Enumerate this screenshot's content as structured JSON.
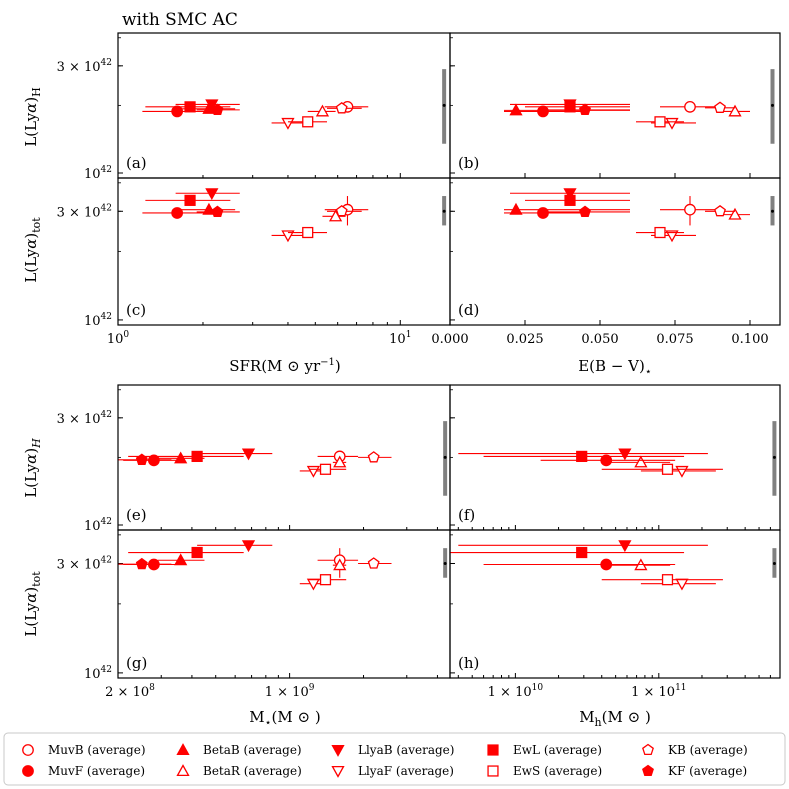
{
  "figure": {
    "title": "with SMC AC",
    "color": "#ff0000",
    "errbar_color": "#808080",
    "ylabels": {
      "top_H": "L(Lyα)_H",
      "top_tot": "L(Lyα)_tot",
      "bottom_H": "L(Lyα)_H",
      "bottom_tot": "L(Lyα)_tot"
    },
    "ytick_labels": {
      "upper": "3 × 10^42",
      "lower": "10^42"
    },
    "xlabels": {
      "sfr": "SFR(M⊙ yr^−1)",
      "ebv": "E(B − V)⋆",
      "mstar": "M⋆(M⊙)",
      "mh": "Mh(M⊙)"
    },
    "xtick_labels": {
      "sfr": [
        "10^0",
        "10^1"
      ],
      "ebv": [
        "0.000",
        "0.025",
        "0.050",
        "0.075",
        "0.100"
      ],
      "mstar": [
        "2 × 10^8",
        "10^9"
      ],
      "mh": [
        "10^10",
        "10^11"
      ]
    },
    "panel_letters": [
      "(a)",
      "(b)",
      "(c)",
      "(d)",
      "(e)",
      "(f)",
      "(g)",
      "(h)"
    ]
  },
  "legend": [
    {
      "label": "MuvB (average)",
      "marker": "circle",
      "filled": false
    },
    {
      "label": "MuvF (average)",
      "marker": "circle",
      "filled": true
    },
    {
      "label": "BetaB (average)",
      "marker": "triangle-up",
      "filled": true
    },
    {
      "label": "BetaR (average)",
      "marker": "triangle-up",
      "filled": false
    },
    {
      "label": "LlyaB (average)",
      "marker": "triangle-down",
      "filled": true
    },
    {
      "label": "LlyaF (average)",
      "marker": "triangle-down",
      "filled": false
    },
    {
      "label": "EwL (average)",
      "marker": "square",
      "filled": true
    },
    {
      "label": "EwS (average)",
      "marker": "square",
      "filled": false
    },
    {
      "label": "KB (average)",
      "marker": "pentagon",
      "filled": false
    },
    {
      "label": "KF (average)",
      "marker": "pentagon",
      "filled": true
    }
  ],
  "chart_data": [
    {
      "panel": "(a)",
      "type": "scatter",
      "xscale": "log",
      "yscale": "log",
      "xlim": [
        1.0,
        15.0
      ],
      "ylim": [
        9.5e+41,
        4.2e+42
      ],
      "ylabel": "L(Lyα)_H",
      "errbar": {
        "x": 14.3,
        "y": 2e+42,
        "ylow": 1.35e+42,
        "yhigh": 2.9e+42
      },
      "points": [
        {
          "group": "MuvB",
          "x": 6.5,
          "y": 1.97e+42,
          "xerr": [
            5.4,
            7.7
          ]
        },
        {
          "group": "MuvF",
          "x": 1.62,
          "y": 1.88e+42,
          "xerr": [
            1.22,
            2.15
          ]
        },
        {
          "group": "BetaB",
          "x": 2.1,
          "y": 1.93e+42,
          "xerr": [
            1.65,
            2.6
          ]
        },
        {
          "group": "BetaR",
          "x": 5.3,
          "y": 1.88e+42,
          "xerr": [
            4.7,
            5.9
          ]
        },
        {
          "group": "LlyaB",
          "x": 2.15,
          "y": 2.02e+42,
          "xerr": [
            1.6,
            2.7
          ]
        },
        {
          "group": "LlyaF",
          "x": 4.0,
          "y": 1.67e+42,
          "xerr": [
            3.5,
            4.6
          ]
        },
        {
          "group": "EwL",
          "x": 1.8,
          "y": 1.97e+42,
          "xerr": [
            1.25,
            2.5
          ]
        },
        {
          "group": "EwS",
          "x": 4.7,
          "y": 1.69e+42,
          "xerr": [
            4.0,
            5.5
          ]
        },
        {
          "group": "KB",
          "x": 6.2,
          "y": 1.94e+42,
          "xerr": [
            5.5,
            7.3
          ]
        },
        {
          "group": "KF",
          "x": 2.25,
          "y": 1.91e+42,
          "xerr": [
            1.9,
            2.7
          ]
        }
      ]
    },
    {
      "panel": "(b)",
      "type": "scatter",
      "xscale": "linear",
      "yscale": "log",
      "xlim": [
        0.0,
        0.11
      ],
      "ylim": [
        9.5e+41,
        4.2e+42
      ],
      "errbar": {
        "x": 0.1075,
        "y": 2e+42,
        "ylow": 1.35e+42,
        "yhigh": 2.9e+42
      },
      "points": [
        {
          "group": "MuvB",
          "x": 0.08,
          "y": 1.97e+42,
          "xerr": [
            0.07,
            0.09
          ]
        },
        {
          "group": "MuvF",
          "x": 0.031,
          "y": 1.88e+42,
          "xerr": [
            0.018,
            0.045
          ]
        },
        {
          "group": "BetaB",
          "x": 0.022,
          "y": 1.9e+42,
          "xerr": [
            0.018,
            0.06
          ]
        },
        {
          "group": "BetaR",
          "x": 0.095,
          "y": 1.88e+42,
          "xerr": [
            0.09,
            0.1
          ]
        },
        {
          "group": "LlyaB",
          "x": 0.04,
          "y": 2.02e+42,
          "xerr": [
            0.02,
            0.06
          ]
        },
        {
          "group": "LlyaF",
          "x": 0.074,
          "y": 1.67e+42,
          "xerr": [
            0.067,
            0.082
          ]
        },
        {
          "group": "EwL",
          "x": 0.04,
          "y": 1.97e+42,
          "xerr": [
            0.025,
            0.06
          ]
        },
        {
          "group": "EwS",
          "x": 0.07,
          "y": 1.69e+42,
          "xerr": [
            0.062,
            0.078
          ]
        },
        {
          "group": "KB",
          "x": 0.09,
          "y": 1.95e+42,
          "xerr": [
            0.085,
            0.095
          ]
        },
        {
          "group": "KF",
          "x": 0.045,
          "y": 1.91e+42,
          "xerr": [
            0.03,
            0.06
          ]
        }
      ]
    },
    {
      "panel": "(c)",
      "type": "scatter",
      "xscale": "log",
      "yscale": "log",
      "xlim": [
        1.0,
        15.0
      ],
      "ylim": [
        9.5e+41,
        4.2e+42
      ],
      "xlabel": "SFR(M⊙ yr^−1)",
      "ylabel": "L(Lyα)_tot",
      "errbar": {
        "x": 14.3,
        "y": 3e+42,
        "ylow": 2.6e+42,
        "yhigh": 3.5e+42
      },
      "points": [
        {
          "group": "MuvB",
          "x": 6.5,
          "y": 3.05e+42,
          "xerr": [
            5.4,
            7.7
          ],
          "yerr": [
            2.6,
            3.5
          ]
        },
        {
          "group": "MuvF",
          "x": 1.62,
          "y": 2.95e+42,
          "xerr": [
            1.22,
            2.15
          ]
        },
        {
          "group": "BetaB",
          "x": 2.1,
          "y": 3.05e+42,
          "xerr": [
            1.65,
            2.6
          ]
        },
        {
          "group": "BetaR",
          "x": 5.9,
          "y": 2.85e+42,
          "xerr": [
            5.3,
            6.4
          ]
        },
        {
          "group": "LlyaB",
          "x": 2.15,
          "y": 3.6e+42,
          "xerr": [
            1.6,
            2.7
          ]
        },
        {
          "group": "LlyaF",
          "x": 4.0,
          "y": 2.35e+42,
          "xerr": [
            3.5,
            4.6
          ]
        },
        {
          "group": "EwL",
          "x": 1.8,
          "y": 3.35e+42,
          "xerr": [
            1.25,
            2.5
          ]
        },
        {
          "group": "EwS",
          "x": 4.7,
          "y": 2.42e+42,
          "xerr": [
            4.0,
            5.5
          ]
        },
        {
          "group": "KB",
          "x": 6.2,
          "y": 3e+42,
          "xerr": [
            5.5,
            7.3
          ]
        },
        {
          "group": "KF",
          "x": 2.25,
          "y": 2.98e+42,
          "xerr": [
            1.9,
            2.7
          ]
        }
      ]
    },
    {
      "panel": "(d)",
      "type": "scatter",
      "xscale": "linear",
      "yscale": "log",
      "xlim": [
        0.0,
        0.11
      ],
      "ylim": [
        9.5e+41,
        4.2e+42
      ],
      "xlabel": "E(B − V)⋆",
      "errbar": {
        "x": 0.1075,
        "y": 3e+42,
        "ylow": 2.6e+42,
        "yhigh": 3.5e+42
      },
      "points": [
        {
          "group": "MuvB",
          "x": 0.08,
          "y": 3.05e+42,
          "xerr": [
            0.07,
            0.09
          ],
          "yerr": [
            2.6,
            3.5
          ]
        },
        {
          "group": "MuvF",
          "x": 0.031,
          "y": 2.95e+42,
          "xerr": [
            0.018,
            0.045
          ]
        },
        {
          "group": "BetaB",
          "x": 0.022,
          "y": 3.05e+42,
          "xerr": [
            0.018,
            0.06
          ]
        },
        {
          "group": "BetaR",
          "x": 0.095,
          "y": 2.9e+42,
          "xerr": [
            0.09,
            0.1
          ]
        },
        {
          "group": "LlyaB",
          "x": 0.04,
          "y": 3.6e+42,
          "xerr": [
            0.02,
            0.06
          ]
        },
        {
          "group": "LlyaF",
          "x": 0.074,
          "y": 2.35e+42,
          "xerr": [
            0.067,
            0.082
          ]
        },
        {
          "group": "EwL",
          "x": 0.04,
          "y": 3.35e+42,
          "xerr": [
            0.025,
            0.06
          ]
        },
        {
          "group": "EwS",
          "x": 0.07,
          "y": 2.42e+42,
          "xerr": [
            0.062,
            0.078
          ]
        },
        {
          "group": "KB",
          "x": 0.09,
          "y": 3e+42,
          "xerr": [
            0.085,
            0.095
          ]
        },
        {
          "group": "KF",
          "x": 0.045,
          "y": 2.98e+42,
          "xerr": [
            0.03,
            0.06
          ]
        }
      ]
    },
    {
      "panel": "(e)",
      "type": "scatter",
      "xscale": "log",
      "yscale": "log",
      "xlim": [
        200000000.0,
        4500000000.0
      ],
      "ylim": [
        9.5e+41,
        4.2e+42
      ],
      "ylabel": "L(Lyα)_H",
      "errbar": {
        "x": 4300000000.0,
        "y": 2e+42,
        "ylow": 1.35e+42,
        "yhigh": 2.9e+42
      },
      "points": [
        {
          "group": "MuvB",
          "x": 1600000000.0,
          "y": 2.02e+42,
          "xerr": [
            1300000000.0,
            1900000000.0
          ]
        },
        {
          "group": "MuvF",
          "x": 280000000.0,
          "y": 1.94e+42,
          "xerr": [
            210000000.0,
            360000000.0
          ]
        },
        {
          "group": "BetaB",
          "x": 360000000.0,
          "y": 1.98e+42,
          "xerr": [
            290000000.0,
            450000000.0
          ]
        },
        {
          "group": "BetaR",
          "x": 1600000000.0,
          "y": 1.9e+42,
          "xerr": [
            1500000000.0,
            1700000000.0
          ]
        },
        {
          "group": "LlyaB",
          "x": 680000000.0,
          "y": 2.08e+42,
          "xerr": [
            420000000.0,
            850000000.0
          ]
        },
        {
          "group": "LlyaF",
          "x": 1250000000.0,
          "y": 1.74e+42,
          "xerr": [
            1100000000.0,
            1450000000.0
          ]
        },
        {
          "group": "EwL",
          "x": 420000000.0,
          "y": 2.02e+42,
          "xerr": [
            220000000.0,
            650000000.0
          ]
        },
        {
          "group": "EwS",
          "x": 1400000000.0,
          "y": 1.77e+42,
          "xerr": [
            1200000000.0,
            1700000000.0
          ]
        },
        {
          "group": "KB",
          "x": 2200000000.0,
          "y": 2e+42,
          "xerr": [
            1900000000.0,
            2600000000.0
          ]
        },
        {
          "group": "KF",
          "x": 250000000.0,
          "y": 1.95e+42,
          "xerr": [
            200000000.0,
            330000000.0
          ]
        }
      ]
    },
    {
      "panel": "(f)",
      "type": "scatter",
      "xscale": "log",
      "yscale": "log",
      "xlim": [
        3500000000.0,
        700000000000.0
      ],
      "ylim": [
        9.5e+41,
        4.2e+42
      ],
      "errbar": {
        "x": 640000000000.0,
        "y": 2e+42,
        "ylow": 1.35e+42,
        "yhigh": 2.9e+42
      },
      "points": [
        {
          "group": "BetaR",
          "x": 75000000000.0,
          "y": 1.9e+42,
          "xerr": [
            40000000000.0,
            120000000000.0
          ]
        },
        {
          "group": "LlyaB",
          "x": 58000000000.0,
          "y": 2.08e+42,
          "xerr": [
            4000000000.0,
            220000000000.0
          ]
        },
        {
          "group": "LlyaF",
          "x": 145000000000.0,
          "y": 1.74e+42,
          "xerr": [
            75000000000.0,
            250000000000.0
          ]
        },
        {
          "group": "EwL",
          "x": 29000000000.0,
          "y": 2.02e+42,
          "xerr": [
            6000000000.0,
            150000000000.0
          ]
        },
        {
          "group": "EwS",
          "x": 115000000000.0,
          "y": 1.77e+42,
          "xerr": [
            40000000000.0,
            280000000000.0
          ]
        },
        {
          "group": "MuvF",
          "x": 43000000000.0,
          "y": 1.94e+42,
          "xerr": [
            15000000000.0,
            130000000000.0
          ]
        }
      ]
    },
    {
      "panel": "(g)",
      "type": "scatter",
      "xscale": "log",
      "yscale": "log",
      "xlim": [
        200000000.0,
        4500000000.0
      ],
      "ylim": [
        9.5e+41,
        4.2e+42
      ],
      "xlabel": "M⋆(M⊙)",
      "ylabel": "L(Lyα)_tot",
      "errbar": {
        "x": 4300000000.0,
        "y": 3e+42,
        "ylow": 2.6e+42,
        "yhigh": 3.5e+42
      },
      "points": [
        {
          "group": "MuvB",
          "x": 1600000000.0,
          "y": 3.1e+42,
          "xerr": [
            1300000000.0,
            1900000000.0
          ],
          "yerr": [
            2.6,
            3.5
          ]
        },
        {
          "group": "MuvF",
          "x": 280000000.0,
          "y": 2.97e+42,
          "xerr": [
            210000000.0,
            360000000.0
          ]
        },
        {
          "group": "BetaB",
          "x": 360000000.0,
          "y": 3.1e+42,
          "xerr": [
            290000000.0,
            450000000.0
          ]
        },
        {
          "group": "BetaR",
          "x": 1600000000.0,
          "y": 2.95e+42,
          "xerr": [
            1500000000.0,
            1700000000.0
          ]
        },
        {
          "group": "LlyaB",
          "x": 680000000.0,
          "y": 3.6e+42,
          "xerr": [
            420000000.0,
            850000000.0
          ]
        },
        {
          "group": "LlyaF",
          "x": 1250000000.0,
          "y": 2.45e+42,
          "xerr": [
            1100000000.0,
            1450000000.0
          ]
        },
        {
          "group": "EwL",
          "x": 420000000.0,
          "y": 3.35e+42,
          "xerr": [
            220000000.0,
            650000000.0
          ]
        },
        {
          "group": "EwS",
          "x": 1400000000.0,
          "y": 2.55e+42,
          "xerr": [
            1200000000.0,
            1700000000.0
          ]
        },
        {
          "group": "KB",
          "x": 2200000000.0,
          "y": 3e+42,
          "xerr": [
            1900000000.0,
            2600000000.0
          ]
        },
        {
          "group": "KF",
          "x": 250000000.0,
          "y": 2.98e+42,
          "xerr": [
            200000000.0,
            330000000.0
          ]
        }
      ]
    },
    {
      "panel": "(h)",
      "type": "scatter",
      "xscale": "log",
      "yscale": "log",
      "xlim": [
        3500000000.0,
        700000000000.0
      ],
      "ylim": [
        9.5e+41,
        4.2e+42
      ],
      "xlabel": "Mh(M⊙)",
      "errbar": {
        "x": 640000000000.0,
        "y": 3e+42,
        "ylow": 2.6e+42,
        "yhigh": 3.5e+42
      },
      "points": [
        {
          "group": "BetaR",
          "x": 75000000000.0,
          "y": 2.95e+42,
          "xerr": [
            40000000000.0,
            120000000000.0
          ]
        },
        {
          "group": "LlyaB",
          "x": 58000000000.0,
          "y": 3.6e+42,
          "xerr": [
            4000000000.0,
            220000000000.0
          ]
        },
        {
          "group": "LlyaF",
          "x": 145000000000.0,
          "y": 2.45e+42,
          "xerr": [
            75000000000.0,
            250000000000.0
          ]
        },
        {
          "group": "EwL",
          "x": 29000000000.0,
          "y": 3.35e+42,
          "xerr": [
            3500000000.0,
            150000000000.0
          ]
        },
        {
          "group": "EwS",
          "x": 115000000000.0,
          "y": 2.55e+42,
          "xerr": [
            40000000000.0,
            280000000000.0
          ]
        },
        {
          "group": "MuvF",
          "x": 43000000000.0,
          "y": 2.97e+42,
          "xerr": [
            6000000000.0,
            130000000000.0
          ]
        }
      ]
    }
  ]
}
